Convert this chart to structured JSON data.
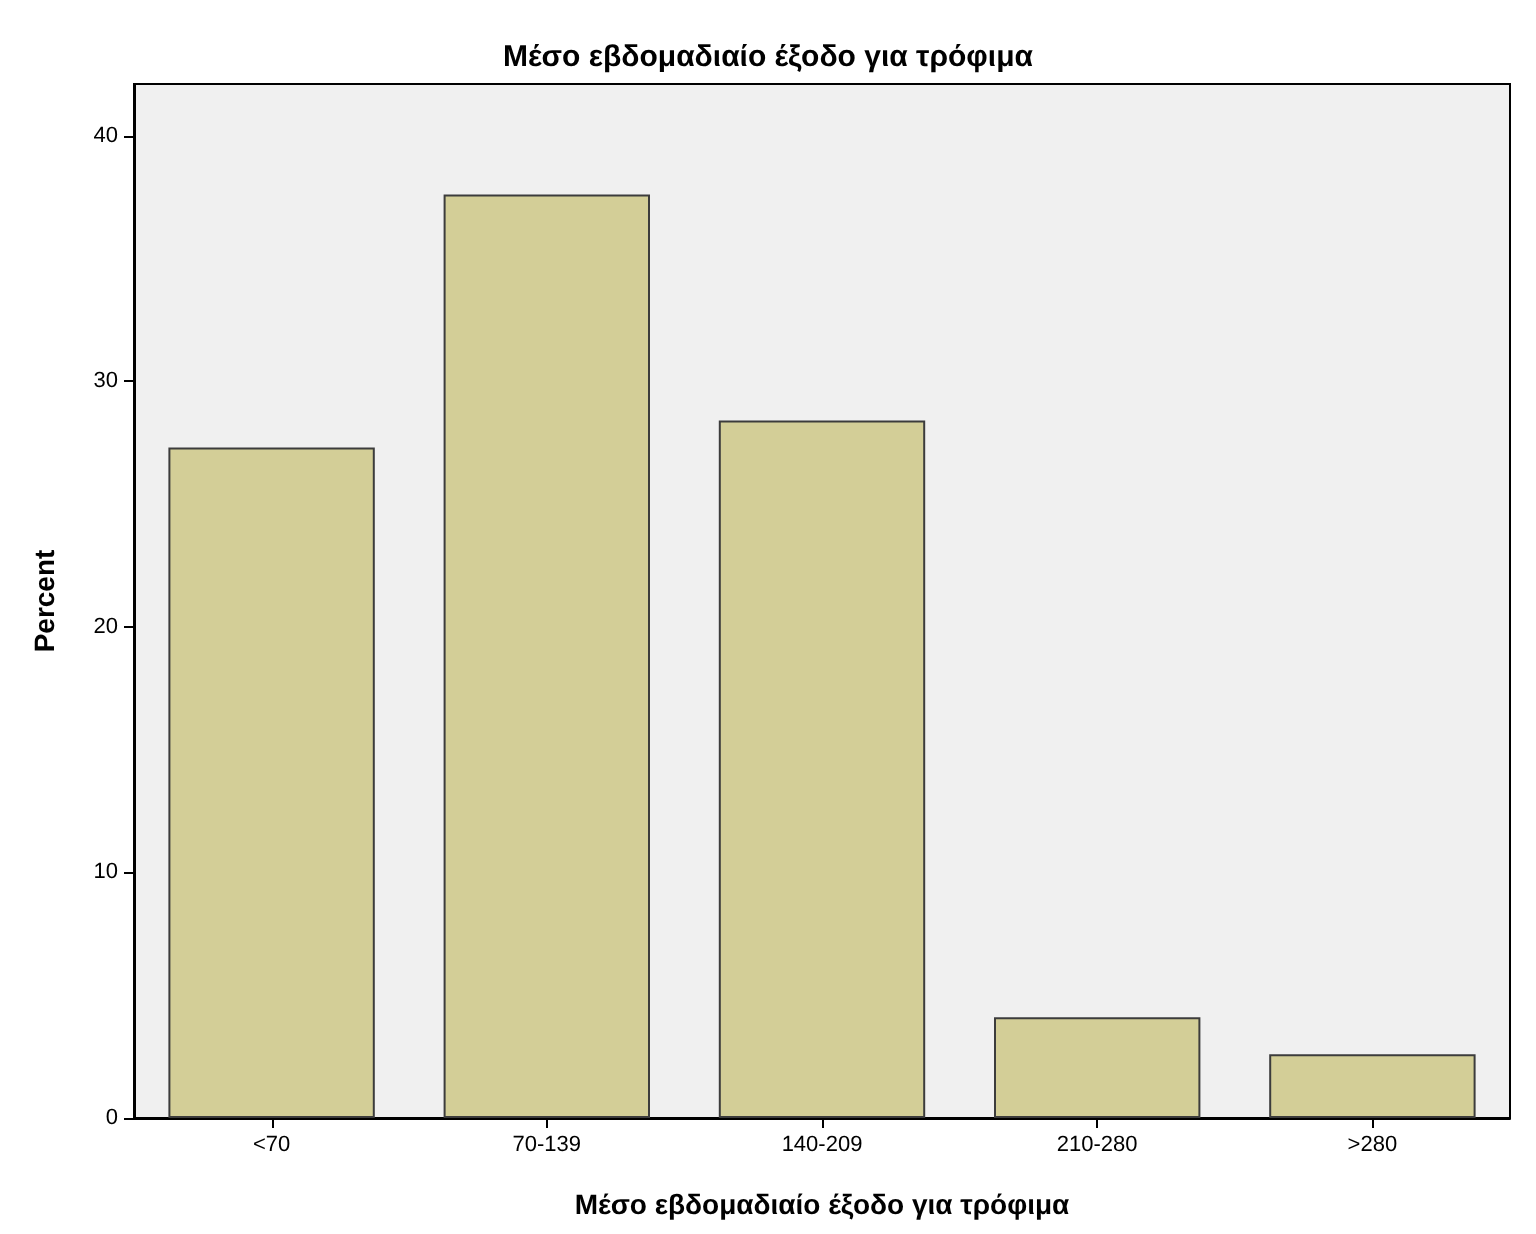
{
  "chart_data": {
    "type": "bar",
    "title": "Μέσο εβδομαδιαίο έξοδο για τρόφιμα",
    "xlabel": "Μέσο εβδομαδιαίο έξοδο για τρόφιμα",
    "ylabel": "Percent",
    "categories": [
      "<70",
      "70-139",
      "140-209",
      "210-280",
      ">280"
    ],
    "values": [
      27.3,
      37.6,
      28.4,
      4.1,
      2.6
    ],
    "color": "#d3ce97",
    "ylim": [
      0,
      42.1
    ],
    "yticks": [
      0,
      10,
      20,
      30,
      40
    ]
  }
}
